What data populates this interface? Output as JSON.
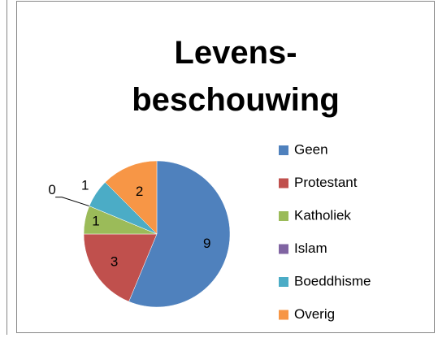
{
  "chart_data": {
    "type": "pie",
    "title": "Levens-beschouwing",
    "categories": [
      "Geen",
      "Protestant",
      "Katholiek",
      "Islam",
      "Boeddhisme",
      "Overig"
    ],
    "values": [
      9,
      3,
      1,
      0,
      1,
      2
    ],
    "colors": [
      "#4f81bd",
      "#c0504d",
      "#9bbb59",
      "#8064a2",
      "#4bacc6",
      "#f79646"
    ],
    "legend": "right"
  }
}
